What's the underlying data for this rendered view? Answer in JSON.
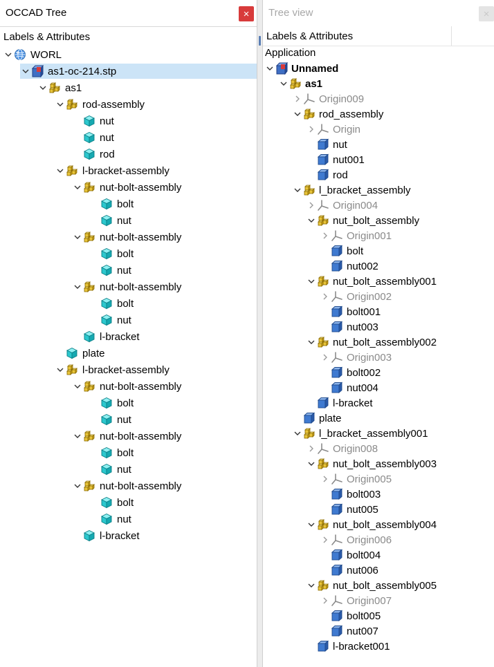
{
  "colors": {
    "accent": "#cce4f7",
    "close": "#d83b3b"
  },
  "left_panel": {
    "title": "OCCAD Tree",
    "close_label": "×",
    "header": "Labels & Attributes",
    "tree": [
      {
        "label": "WORL",
        "icon": "globe",
        "state": "open"
      },
      {
        "label": "as1-oc-214.stp",
        "icon": "doc",
        "state": "open",
        "selected": true
      },
      {
        "label": "as1",
        "icon": "asm",
        "state": "open"
      },
      {
        "label": "rod-assembly",
        "icon": "asm",
        "state": "open"
      },
      {
        "label": "nut",
        "icon": "part",
        "state": "leaf"
      },
      {
        "label": "nut",
        "icon": "part",
        "state": "leaf"
      },
      {
        "label": "rod",
        "icon": "part",
        "state": "leaf"
      },
      {
        "label": "l-bracket-assembly",
        "icon": "asm",
        "state": "open"
      },
      {
        "label": "nut-bolt-assembly",
        "icon": "asm",
        "state": "open"
      },
      {
        "label": "bolt",
        "icon": "part",
        "state": "leaf"
      },
      {
        "label": "nut",
        "icon": "part",
        "state": "leaf"
      },
      {
        "label": "nut-bolt-assembly",
        "icon": "asm",
        "state": "open"
      },
      {
        "label": "bolt",
        "icon": "part",
        "state": "leaf"
      },
      {
        "label": "nut",
        "icon": "part",
        "state": "leaf"
      },
      {
        "label": "nut-bolt-assembly",
        "icon": "asm",
        "state": "open"
      },
      {
        "label": "bolt",
        "icon": "part",
        "state": "leaf"
      },
      {
        "label": "nut",
        "icon": "part",
        "state": "leaf"
      },
      {
        "label": "l-bracket",
        "icon": "part",
        "state": "leaf"
      },
      {
        "label": "plate",
        "icon": "part",
        "state": "leaf"
      },
      {
        "label": "l-bracket-assembly",
        "icon": "asm",
        "state": "open"
      },
      {
        "label": "nut-bolt-assembly",
        "icon": "asm",
        "state": "open"
      },
      {
        "label": "bolt",
        "icon": "part",
        "state": "leaf"
      },
      {
        "label": "nut",
        "icon": "part",
        "state": "leaf"
      },
      {
        "label": "nut-bolt-assembly",
        "icon": "asm",
        "state": "open"
      },
      {
        "label": "bolt",
        "icon": "part",
        "state": "leaf"
      },
      {
        "label": "nut",
        "icon": "part",
        "state": "leaf"
      },
      {
        "label": "nut-bolt-assembly",
        "icon": "asm",
        "state": "open"
      },
      {
        "label": "bolt",
        "icon": "part",
        "state": "leaf"
      },
      {
        "label": "nut",
        "icon": "part",
        "state": "leaf"
      },
      {
        "label": "l-bracket",
        "icon": "part",
        "state": "leaf"
      }
    ]
  },
  "right_panel": {
    "title": "Tree view",
    "close_label": "×",
    "header": "Labels & Attributes",
    "application_label": "Application",
    "tree": [
      {
        "label": "Unnamed",
        "icon": "doc",
        "state": "open",
        "bold": true
      },
      {
        "label": "as1",
        "icon": "asm",
        "state": "open",
        "bold": true
      },
      {
        "label": "Origin009",
        "icon": "origin",
        "state": "closed",
        "gray": true
      },
      {
        "label": "rod_assembly",
        "icon": "asm",
        "state": "open"
      },
      {
        "label": "Origin",
        "icon": "origin",
        "state": "closed",
        "gray": true
      },
      {
        "label": "nut",
        "icon": "part",
        "state": "leaf"
      },
      {
        "label": "nut001",
        "icon": "part",
        "state": "leaf"
      },
      {
        "label": "rod",
        "icon": "part",
        "state": "leaf"
      },
      {
        "label": "l_bracket_assembly",
        "icon": "asm",
        "state": "open"
      },
      {
        "label": "Origin004",
        "icon": "origin",
        "state": "closed",
        "gray": true
      },
      {
        "label": "nut_bolt_assembly",
        "icon": "asm",
        "state": "open"
      },
      {
        "label": "Origin001",
        "icon": "origin",
        "state": "closed",
        "gray": true
      },
      {
        "label": "bolt",
        "icon": "part",
        "state": "leaf"
      },
      {
        "label": "nut002",
        "icon": "part",
        "state": "leaf"
      },
      {
        "label": "nut_bolt_assembly001",
        "icon": "asm",
        "state": "open"
      },
      {
        "label": "Origin002",
        "icon": "origin",
        "state": "closed",
        "gray": true
      },
      {
        "label": "bolt001",
        "icon": "part",
        "state": "leaf"
      },
      {
        "label": "nut003",
        "icon": "part",
        "state": "leaf"
      },
      {
        "label": "nut_bolt_assembly002",
        "icon": "asm",
        "state": "open"
      },
      {
        "label": "Origin003",
        "icon": "origin",
        "state": "closed",
        "gray": true
      },
      {
        "label": "bolt002",
        "icon": "part",
        "state": "leaf"
      },
      {
        "label": "nut004",
        "icon": "part",
        "state": "leaf"
      },
      {
        "label": "l-bracket",
        "icon": "part",
        "state": "leaf"
      },
      {
        "label": "plate",
        "icon": "part",
        "state": "leaf"
      },
      {
        "label": "l_bracket_assembly001",
        "icon": "asm",
        "state": "open"
      },
      {
        "label": "Origin008",
        "icon": "origin",
        "state": "closed",
        "gray": true
      },
      {
        "label": "nut_bolt_assembly003",
        "icon": "asm",
        "state": "open"
      },
      {
        "label": "Origin005",
        "icon": "origin",
        "state": "closed",
        "gray": true
      },
      {
        "label": "bolt003",
        "icon": "part",
        "state": "leaf"
      },
      {
        "label": "nut005",
        "icon": "part",
        "state": "leaf"
      },
      {
        "label": "nut_bolt_assembly004",
        "icon": "asm",
        "state": "open"
      },
      {
        "label": "Origin006",
        "icon": "origin",
        "state": "closed",
        "gray": true
      },
      {
        "label": "bolt004",
        "icon": "part",
        "state": "leaf"
      },
      {
        "label": "nut006",
        "icon": "part",
        "state": "leaf"
      },
      {
        "label": "nut_bolt_assembly005",
        "icon": "asm",
        "state": "open"
      },
      {
        "label": "Origin007",
        "icon": "origin",
        "state": "closed",
        "gray": true
      },
      {
        "label": "bolt005",
        "icon": "part",
        "state": "leaf"
      },
      {
        "label": "nut007",
        "icon": "part",
        "state": "leaf"
      },
      {
        "label": "l-bracket001",
        "icon": "part",
        "state": "leaf"
      }
    ]
  }
}
